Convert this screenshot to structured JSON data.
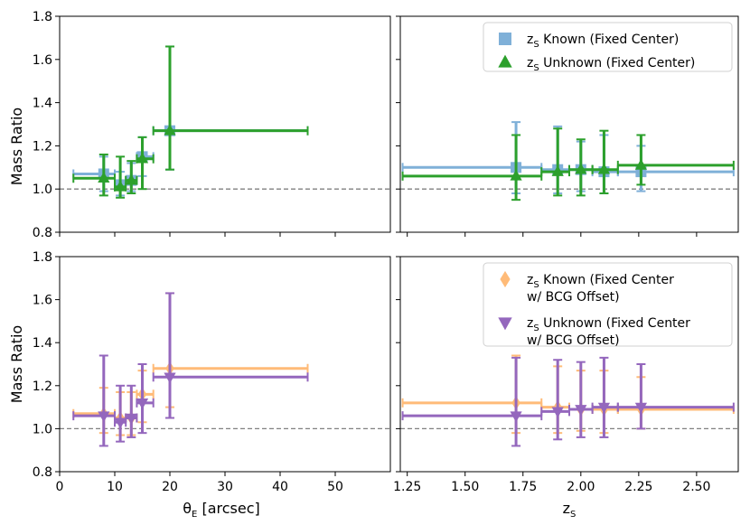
{
  "figure": {
    "ylabel": "Mass Ratio",
    "xlabel_left": "θE [arcsec]",
    "xlabel_right": "zS"
  },
  "colors": {
    "known_fixed": "#7fb0d8",
    "unknown_fixed": "#2ca02c",
    "known_bcg": "#ffbb78",
    "unknown_bcg": "#9467bd",
    "refline": "#808080"
  },
  "chart_data": [
    {
      "type": "scatter",
      "panel": "top-left",
      "xlim": [
        0,
        60
      ],
      "ylim": [
        0.8,
        1.8
      ],
      "xticks": [
        0,
        10,
        20,
        30,
        40,
        50
      ],
      "yticks": [
        "0.8",
        "1.0",
        "1.2",
        "1.4",
        "1.6",
        "1.8"
      ],
      "ylabel": "Mass Ratio",
      "reference_line": 1.0,
      "series": [
        {
          "name": "zS Known (Fixed Center)",
          "marker": "square",
          "color": "#7fb0d8",
          "points": [
            {
              "x": 8,
              "xlo": 2.5,
              "xhi": 10,
              "y": 1.07,
              "ylo": 0.99,
              "yhi": 1.15
            },
            {
              "x": 11,
              "xlo": 10,
              "xhi": 12,
              "y": 1.02,
              "ylo": 0.97,
              "yhi": 1.08
            },
            {
              "x": 13,
              "xlo": 12,
              "xhi": 14,
              "y": 1.04,
              "ylo": 0.99,
              "yhi": 1.12
            },
            {
              "x": 15,
              "xlo": 14,
              "xhi": 17,
              "y": 1.15,
              "ylo": 1.06,
              "yhi": 1.24
            },
            {
              "x": 20,
              "xlo": 17,
              "xhi": 45,
              "y": 1.27,
              "ylo": 1.09,
              "yhi": 1.66
            }
          ]
        },
        {
          "name": "zS Unknown (Fixed Center)",
          "marker": "triangle-up",
          "color": "#2ca02c",
          "points": [
            {
              "x": 8,
              "xlo": 2.5,
              "xhi": 10,
              "y": 1.05,
              "ylo": 0.97,
              "yhi": 1.16
            },
            {
              "x": 11,
              "xlo": 10,
              "xhi": 12,
              "y": 1.01,
              "ylo": 0.96,
              "yhi": 1.15
            },
            {
              "x": 13,
              "xlo": 12,
              "xhi": 14,
              "y": 1.04,
              "ylo": 0.98,
              "yhi": 1.13
            },
            {
              "x": 15,
              "xlo": 14,
              "xhi": 17,
              "y": 1.14,
              "ylo": 1.0,
              "yhi": 1.24
            },
            {
              "x": 20,
              "xlo": 17,
              "xhi": 45,
              "y": 1.27,
              "ylo": 1.09,
              "yhi": 1.66
            }
          ]
        }
      ]
    },
    {
      "type": "scatter",
      "panel": "top-right",
      "xlim": [
        1.22,
        2.68
      ],
      "ylim": [
        0.8,
        1.8
      ],
      "xticks": [
        "1.25",
        "1.50",
        "1.75",
        "2.00",
        "2.25",
        "2.50"
      ],
      "reference_line": 1.0,
      "legend_position": "top-right",
      "series": [
        {
          "name": "zS Known (Fixed Center)",
          "marker": "square",
          "color": "#7fb0d8",
          "points": [
            {
              "x": 1.72,
              "xlo": 1.23,
              "xhi": 1.83,
              "y": 1.1,
              "ylo": 0.98,
              "yhi": 1.31
            },
            {
              "x": 1.9,
              "xlo": 1.83,
              "xhi": 1.95,
              "y": 1.09,
              "ylo": 0.98,
              "yhi": 1.29
            },
            {
              "x": 2.0,
              "xlo": 1.95,
              "xhi": 2.05,
              "y": 1.09,
              "ylo": 0.99,
              "yhi": 1.22
            },
            {
              "x": 2.1,
              "xlo": 2.05,
              "xhi": 2.16,
              "y": 1.08,
              "ylo": 0.98,
              "yhi": 1.25
            },
            {
              "x": 2.26,
              "xlo": 2.16,
              "xhi": 2.66,
              "y": 1.08,
              "ylo": 0.99,
              "yhi": 1.2
            }
          ]
        },
        {
          "name": "zS Unknown (Fixed Center)",
          "marker": "triangle-up",
          "color": "#2ca02c",
          "points": [
            {
              "x": 1.72,
              "xlo": 1.23,
              "xhi": 1.83,
              "y": 1.06,
              "ylo": 0.95,
              "yhi": 1.25
            },
            {
              "x": 1.9,
              "xlo": 1.83,
              "xhi": 1.95,
              "y": 1.08,
              "ylo": 0.97,
              "yhi": 1.28
            },
            {
              "x": 2.0,
              "xlo": 1.95,
              "xhi": 2.05,
              "y": 1.09,
              "ylo": 0.97,
              "yhi": 1.23
            },
            {
              "x": 2.1,
              "xlo": 2.05,
              "xhi": 2.16,
              "y": 1.09,
              "ylo": 0.98,
              "yhi": 1.27
            },
            {
              "x": 2.26,
              "xlo": 2.16,
              "xhi": 2.66,
              "y": 1.11,
              "ylo": 1.02,
              "yhi": 1.25
            }
          ]
        }
      ]
    },
    {
      "type": "scatter",
      "panel": "bottom-left",
      "xlim": [
        0,
        60
      ],
      "ylim": [
        0.8,
        1.8
      ],
      "xticks": [
        "0",
        "10",
        "20",
        "30",
        "40",
        "50"
      ],
      "yticks": [
        "0.8",
        "1.0",
        "1.2",
        "1.4",
        "1.6",
        "1.8"
      ],
      "xlabel": "θE [arcsec]",
      "ylabel": "Mass Ratio",
      "reference_line": 1.0,
      "series": [
        {
          "name": "zS Known (Fixed Center w/ BCG Offset)",
          "marker": "diamond",
          "color": "#ffbb78",
          "points": [
            {
              "x": 8,
              "xlo": 2.5,
              "xhi": 10,
              "y": 1.07,
              "ylo": 0.98,
              "yhi": 1.19
            },
            {
              "x": 11,
              "xlo": 10,
              "xhi": 12,
              "y": 1.05,
              "ylo": 0.97,
              "yhi": 1.17
            },
            {
              "x": 13,
              "xlo": 12,
              "xhi": 14,
              "y": 1.05,
              "ylo": 0.97,
              "yhi": 1.17
            },
            {
              "x": 15,
              "xlo": 14,
              "xhi": 17,
              "y": 1.16,
              "ylo": 1.03,
              "yhi": 1.27
            },
            {
              "x": 20,
              "xlo": 17,
              "xhi": 45,
              "y": 1.28,
              "ylo": 1.1,
              "yhi": 1.63
            }
          ]
        },
        {
          "name": "zS Unknown (Fixed Center w/ BCG Offset)",
          "marker": "triangle-down",
          "color": "#9467bd",
          "points": [
            {
              "x": 8,
              "xlo": 2.5,
              "xhi": 10,
              "y": 1.06,
              "ylo": 0.92,
              "yhi": 1.34
            },
            {
              "x": 11,
              "xlo": 10,
              "xhi": 12,
              "y": 1.03,
              "ylo": 0.94,
              "yhi": 1.2
            },
            {
              "x": 13,
              "xlo": 12,
              "xhi": 14,
              "y": 1.05,
              "ylo": 0.96,
              "yhi": 1.2
            },
            {
              "x": 15,
              "xlo": 14,
              "xhi": 17,
              "y": 1.12,
              "ylo": 0.98,
              "yhi": 1.3
            },
            {
              "x": 20,
              "xlo": 17,
              "xhi": 45,
              "y": 1.24,
              "ylo": 1.05,
              "yhi": 1.63
            }
          ]
        }
      ]
    },
    {
      "type": "scatter",
      "panel": "bottom-right",
      "xlim": [
        1.22,
        2.68
      ],
      "ylim": [
        0.8,
        1.8
      ],
      "xticks": [
        "1.25",
        "1.50",
        "1.75",
        "2.00",
        "2.25",
        "2.50"
      ],
      "xlabel": "zS",
      "reference_line": 1.0,
      "legend_position": "top-right",
      "series": [
        {
          "name": "zS Known (Fixed Center w/ BCG Offset)",
          "marker": "diamond",
          "color": "#ffbb78",
          "points": [
            {
              "x": 1.72,
              "xlo": 1.23,
              "xhi": 1.83,
              "y": 1.12,
              "ylo": 0.98,
              "yhi": 1.34
            },
            {
              "x": 1.9,
              "xlo": 1.83,
              "xhi": 1.95,
              "y": 1.1,
              "ylo": 0.98,
              "yhi": 1.29
            },
            {
              "x": 2.0,
              "xlo": 1.95,
              "xhi": 2.05,
              "y": 1.09,
              "ylo": 0.99,
              "yhi": 1.27
            },
            {
              "x": 2.1,
              "xlo": 2.05,
              "xhi": 2.16,
              "y": 1.09,
              "ylo": 0.98,
              "yhi": 1.27
            },
            {
              "x": 2.26,
              "xlo": 2.16,
              "xhi": 2.66,
              "y": 1.09,
              "ylo": 1.0,
              "yhi": 1.24
            }
          ]
        },
        {
          "name": "zS Unknown (Fixed Center w/ BCG Offset)",
          "marker": "triangle-down",
          "color": "#9467bd",
          "points": [
            {
              "x": 1.72,
              "xlo": 1.23,
              "xhi": 1.83,
              "y": 1.06,
              "ylo": 0.92,
              "yhi": 1.33
            },
            {
              "x": 1.9,
              "xlo": 1.83,
              "xhi": 1.95,
              "y": 1.08,
              "ylo": 0.95,
              "yhi": 1.32
            },
            {
              "x": 2.0,
              "xlo": 1.95,
              "xhi": 2.05,
              "y": 1.09,
              "ylo": 0.96,
              "yhi": 1.31
            },
            {
              "x": 2.1,
              "xlo": 2.05,
              "xhi": 2.16,
              "y": 1.1,
              "ylo": 0.96,
              "yhi": 1.33
            },
            {
              "x": 2.26,
              "xlo": 2.16,
              "xhi": 2.66,
              "y": 1.1,
              "ylo": 1.0,
              "yhi": 1.3
            }
          ]
        }
      ]
    }
  ],
  "legends": {
    "top": [
      {
        "sym": "z",
        "sub": "S",
        "text": " Known (Fixed Center)",
        "marker": "square",
        "color": "#7fb0d8"
      },
      {
        "sym": "z",
        "sub": "S",
        "text": " Unknown (Fixed Center)",
        "marker": "triangle-up",
        "color": "#2ca02c"
      }
    ],
    "bottom": [
      {
        "sym": "z",
        "sub": "S",
        "text": " Known (Fixed Center",
        "line2": "w/ BCG Offset)",
        "marker": "diamond",
        "color": "#ffbb78"
      },
      {
        "sym": "z",
        "sub": "S",
        "text": " Unknown (Fixed Center",
        "line2": "w/ BCG Offset)",
        "marker": "triangle-down",
        "color": "#9467bd"
      }
    ]
  }
}
